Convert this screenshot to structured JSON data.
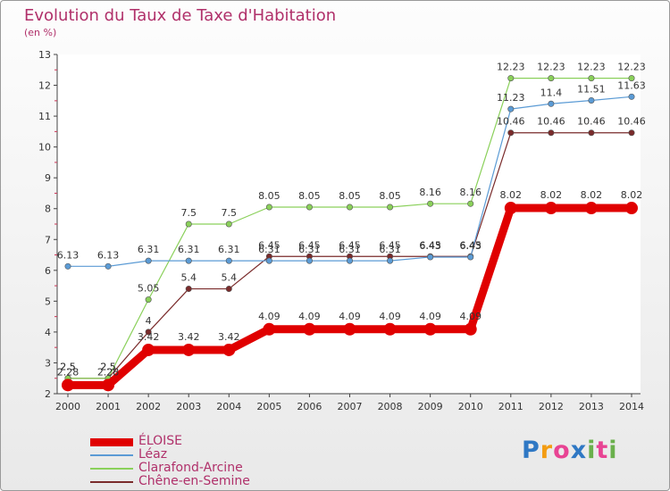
{
  "title": "Evolution du Taux de Taxe d'Habitation",
  "unit_label": "(en %)",
  "brand": {
    "text": "Proxiti",
    "colors": [
      "#2f78c4",
      "#f39c12",
      "#e84393",
      "#2f78c4",
      "#6ab04c",
      "#e84393",
      "#6ab04c"
    ]
  },
  "chart_data": {
    "type": "line",
    "title": "Evolution du Taux de Taxe d'Habitation",
    "ylabel": "(en %)",
    "xlabel": "",
    "ylim": [
      2,
      13
    ],
    "yticks": [
      2,
      3,
      4,
      5,
      6,
      7,
      8,
      9,
      10,
      11,
      12,
      13
    ],
    "x": [
      "2000",
      "2001",
      "2002",
      "2003",
      "2004",
      "2005",
      "2006",
      "2007",
      "2008",
      "2009",
      "2010",
      "2011",
      "2012",
      "2013",
      "2014"
    ],
    "grid": false,
    "legend_position": "bottom-left",
    "series": [
      {
        "name": "ÉLOISE",
        "color": "#e00000",
        "values": [
          2.28,
          2.28,
          3.42,
          3.42,
          3.42,
          4.09,
          4.09,
          4.09,
          4.09,
          4.09,
          4.09,
          8.02,
          8.02,
          8.02,
          8.02
        ],
        "labels": [
          "2.28",
          "2.28",
          "3.42",
          "3.42",
          "3.42",
          "4.09",
          "4.09",
          "4.09",
          "4.09",
          "4.09",
          "4.09",
          "8.02",
          "8.02",
          "8.02",
          "8.02"
        ]
      },
      {
        "name": "Léaz",
        "color": "#5b9bd5",
        "values": [
          6.13,
          6.13,
          6.31,
          6.31,
          6.31,
          6.31,
          6.31,
          6.31,
          6.31,
          6.43,
          6.43,
          11.23,
          11.4,
          11.51,
          11.63
        ],
        "labels": [
          "6.13",
          "6.13",
          "6.31",
          "6.31",
          "6.31",
          "6.31",
          "6.31",
          "6.31",
          "6.31",
          "6.43",
          "6.43",
          "11.23",
          "11.4",
          "11.51",
          "11.63"
        ]
      },
      {
        "name": "Clarafond-Arcine",
        "color": "#8ad05a",
        "values": [
          2.5,
          2.5,
          5.05,
          7.5,
          7.5,
          8.05,
          8.05,
          8.05,
          8.05,
          8.16,
          8.16,
          12.23,
          12.23,
          12.23,
          12.23
        ],
        "labels": [
          "2.5",
          "2.5",
          "5.05",
          "7.5",
          "7.5",
          "8.05",
          "8.05",
          "8.05",
          "8.05",
          "8.16",
          "8.16",
          "12.23",
          "12.23",
          "12.23",
          "12.23"
        ]
      },
      {
        "name": "Chêne-en-Semine",
        "color": "#7a2b2b",
        "values": [
          2.5,
          2.5,
          4,
          5.4,
          5.4,
          6.45,
          6.45,
          6.45,
          6.45,
          6.45,
          6.45,
          10.46,
          10.46,
          10.46,
          10.46
        ],
        "labels": [
          "2.5",
          "2.5",
          "4",
          "5.4",
          "5.4",
          "6.45",
          "6.45",
          "6.45",
          "6.45",
          "6.45",
          "6.45",
          "10.46",
          "10.46",
          "10.46",
          "10.46"
        ]
      }
    ]
  }
}
